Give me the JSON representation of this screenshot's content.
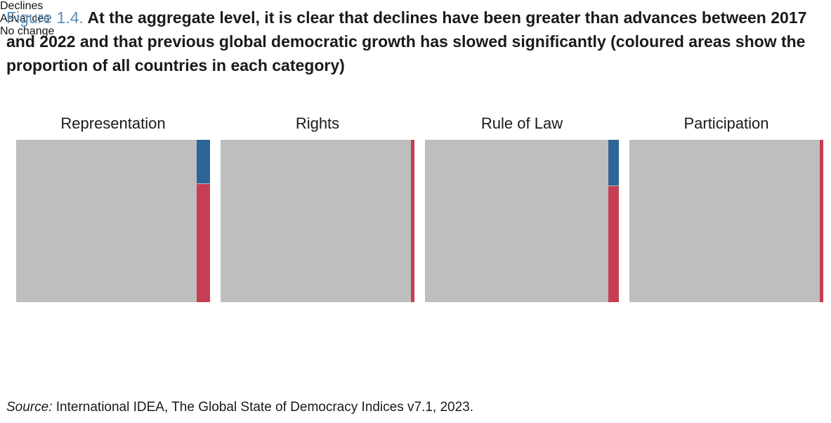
{
  "title": {
    "figure_label": "Figure 1.4.",
    "text": "At the aggregate level, it is clear that declines have been greater than advances between 2017 and 2022 and that previous global democratic growth has slowed significantly (coloured areas show the proportion of all countries in each category)"
  },
  "chart_data": {
    "type": "mosaic",
    "categories": [
      "Representation",
      "Rights",
      "Rule of Law",
      "Participation"
    ],
    "series": [
      {
        "name": "Declines",
        "color": "#c73e54",
        "values": [
          0.0506,
          0.0037,
          0.0383,
          0.0037
        ]
      },
      {
        "name": "Advances",
        "color": "#2f6496",
        "values": [
          0.0191,
          0,
          0.0154,
          0
        ]
      },
      {
        "name": "No change",
        "color": "#bebebe",
        "values": [
          0.9303,
          0.9963,
          0.9463,
          0.9963
        ]
      }
    ],
    "note": "values are approximate proportions of all countries"
  },
  "legend": {
    "items": [
      {
        "label": "Declines",
        "color": "#c73e54"
      },
      {
        "label": "Advances",
        "color": "#2f6496"
      },
      {
        "label": "No change",
        "color": "#bebebe"
      }
    ]
  },
  "source": {
    "label": "Source:",
    "text": "International IDEA, The Global State of Democracy Indices v7.1, 2023."
  }
}
